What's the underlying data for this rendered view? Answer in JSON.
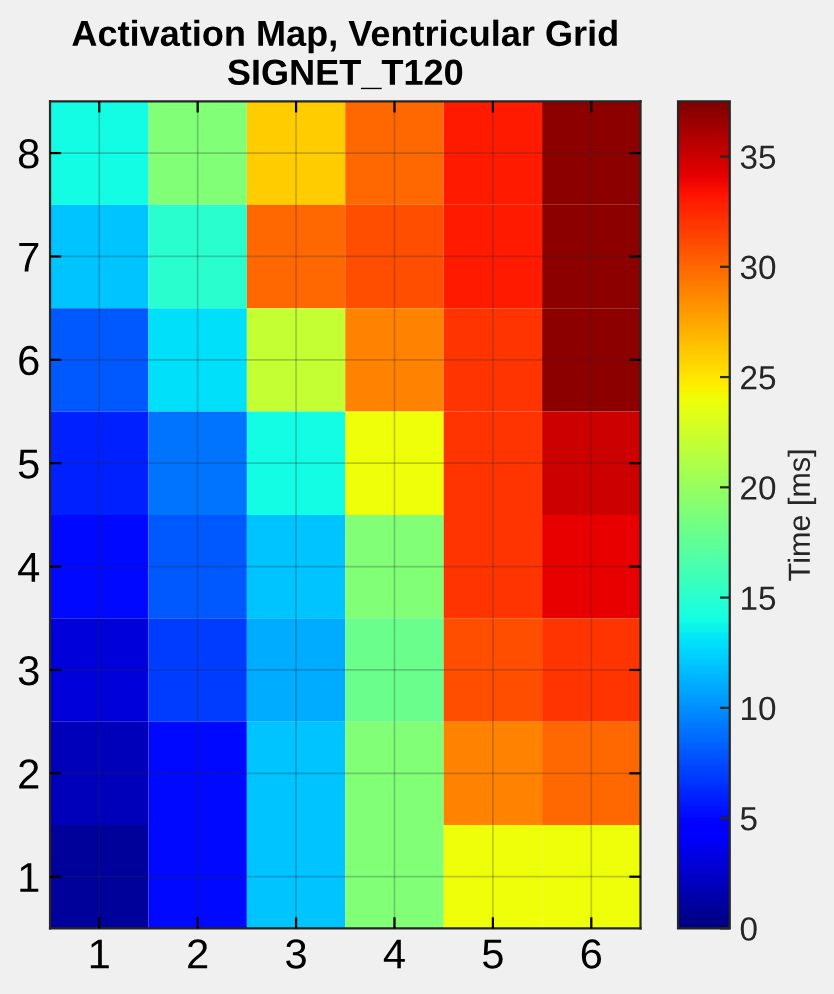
{
  "chart_data": {
    "type": "heatmap",
    "title": "Activation Map, Ventricular Grid\nSIGNET_T120",
    "clabel": "Time [ms]",
    "categories": [
      "1",
      "2",
      "3",
      "4",
      "5",
      "6"
    ],
    "y_categories": [
      "8",
      "7",
      "6",
      "5",
      "4",
      "3",
      "2",
      "1"
    ],
    "cells": [
      [
        14,
        19,
        26,
        30,
        33,
        37
      ],
      [
        12,
        15,
        30,
        31,
        33,
        37
      ],
      [
        8,
        13,
        22,
        29,
        32,
        37
      ],
      [
        6,
        9,
        14,
        24,
        32,
        35
      ],
      [
        5,
        8,
        12,
        19,
        32,
        34
      ],
      [
        3,
        7,
        11,
        18,
        31,
        32
      ],
      [
        2,
        5,
        12,
        19,
        29,
        30
      ],
      [
        1,
        5,
        12,
        19,
        24,
        24
      ]
    ],
    "clim": [
      0,
      37.5
    ],
    "cticks": [
      0,
      5,
      10,
      15,
      20,
      25,
      30,
      35
    ],
    "grid": true
  }
}
